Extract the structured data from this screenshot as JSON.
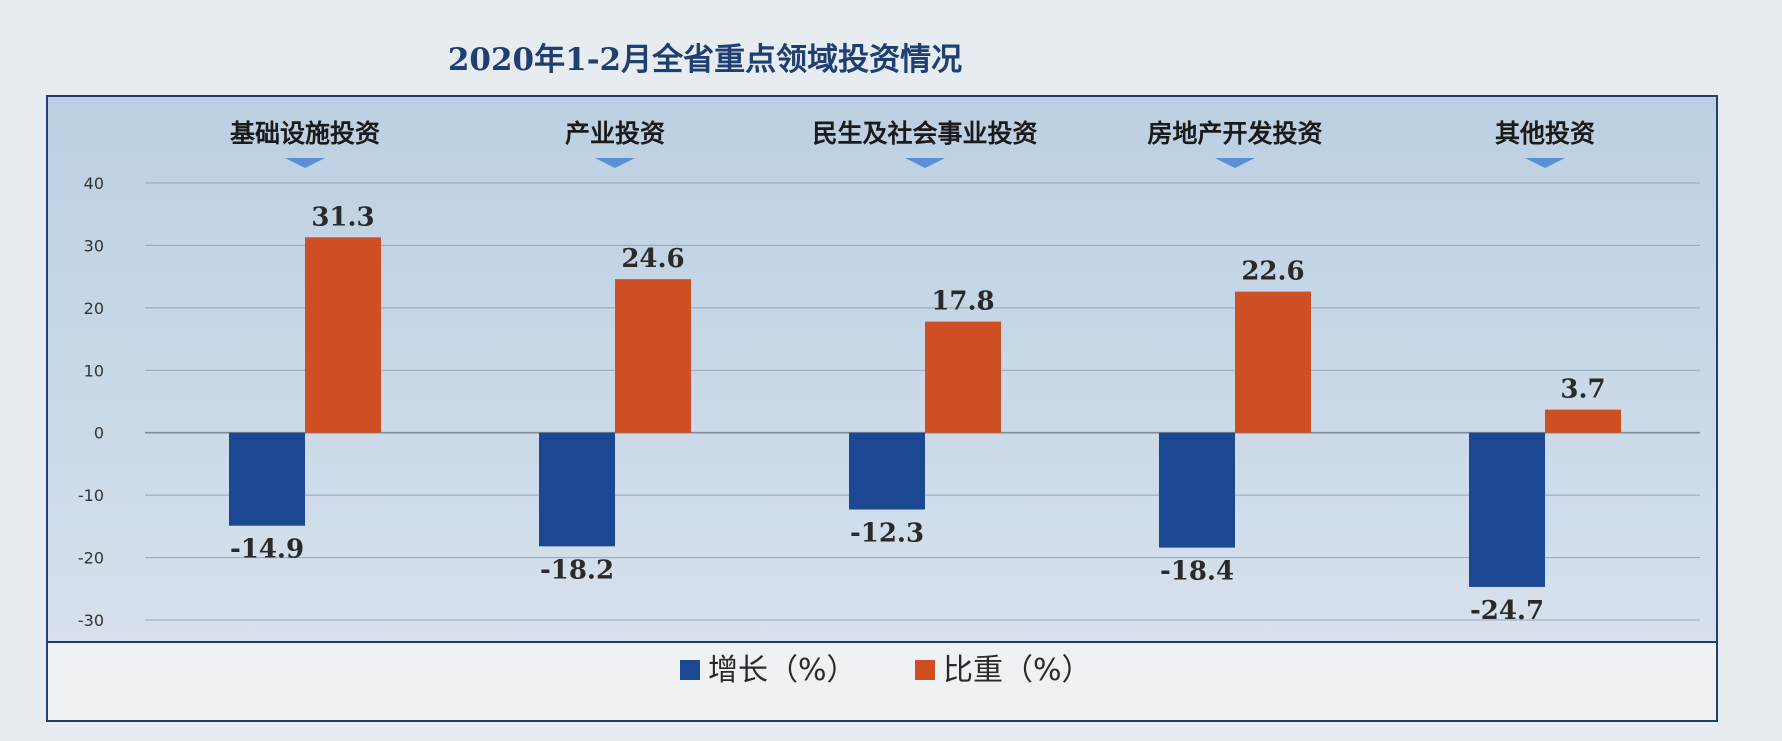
{
  "chart_data": {
    "type": "bar",
    "title": "2020年1-2月全省重点领域投资情况",
    "categories": [
      "基础设施投资",
      "产业投资",
      "民生及社会事业投资",
      "房地产开发投资",
      "其他投资"
    ],
    "series": [
      {
        "name": "增长（%）",
        "color": "#1c4793",
        "values": [
          -14.9,
          -18.2,
          -12.3,
          -18.4,
          -24.7
        ]
      },
      {
        "name": "比重（%）",
        "color": "#cf4f24",
        "values": [
          31.3,
          24.6,
          17.8,
          22.6,
          3.7
        ]
      }
    ],
    "ylim": [
      -30,
      40
    ],
    "yticks": [
      40,
      30,
      20,
      10,
      0,
      -10,
      -20,
      -30
    ],
    "grid": true,
    "legend_position": "bottom-center",
    "marker_color": "#5b8fd4"
  }
}
